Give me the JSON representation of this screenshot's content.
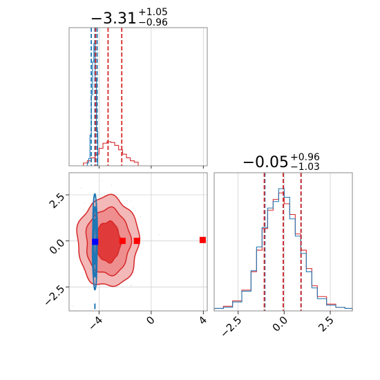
{
  "chart_data": {
    "type": "corner",
    "parameters": [
      {
        "title": {
          "main": "−3.31",
          "sup": "+1.05",
          "sub": "−0.96"
        },
        "xlim": [
          -6.3,
          4.3
        ],
        "xticks": [
          -4,
          0,
          4
        ],
        "xtick_labels": [
          "−4",
          "0",
          "4"
        ],
        "median": -3.31,
        "lower_error": 0.96,
        "upper_error": 1.05
      },
      {
        "title": {
          "main": "−0.05",
          "sup": "+0.96",
          "sub": "−1.03"
        },
        "xlim": [
          -3.8,
          3.7
        ],
        "xticks": [
          -2.5,
          0.0,
          2.5
        ],
        "xtick_labels": [
          "−2.5",
          "0.0",
          "2.5"
        ],
        "median": -0.05,
        "lower_error": 1.03,
        "upper_error": 0.96
      }
    ],
    "joint_panel": {
      "xlim": [
        -6.3,
        4.3
      ],
      "ylim": [
        -3.8,
        3.7
      ],
      "yticks": [
        2.5,
        0.0,
        -2.5
      ],
      "ytick_labels": [
        "2.5",
        "0.0",
        "−2.5"
      ]
    },
    "series": [
      {
        "color": "#d62728",
        "x_quantile_lines": [
          -4.27,
          -3.31,
          -2.26
        ],
        "y_quantile_lines": [
          -1.08,
          -0.05,
          0.91
        ],
        "x_hist_bins": [
          -5.2,
          -4.9,
          -4.6,
          -4.3,
          -4.0,
          -3.7,
          -3.4,
          -3.1,
          -2.8,
          -2.5,
          -2.2,
          -1.9,
          -1.6,
          -1.3,
          -1.0
        ],
        "x_hist_counts": [
          2,
          5,
          9,
          14,
          22,
          29,
          31,
          30,
          26,
          20,
          14,
          9,
          5,
          3
        ],
        "y_hist_bins": [
          -3.8,
          -3.3,
          -2.8,
          -2.3,
          -1.8,
          -1.5,
          -1.2,
          -0.9,
          -0.6,
          -0.3,
          0.0,
          0.3,
          0.6,
          0.9,
          1.2,
          1.5,
          1.8,
          2.3,
          2.8,
          3.3,
          3.7
        ],
        "y_hist_counts": [
          1,
          3,
          8,
          18,
          35,
          55,
          75,
          92,
          102,
          108,
          98,
          88,
          70,
          55,
          38,
          22,
          12,
          5,
          2,
          1
        ],
        "outlier_points": [
          [
            -1.1,
            0.0
          ],
          [
            -2.2,
            0.0
          ],
          [
            3.95,
            0.05
          ]
        ]
      },
      {
        "color": "#1f77b4",
        "x_quantile_lines": [
          -4.6,
          -4.32,
          -4.15
        ],
        "y_quantile_lines": [
          -1.05,
          -0.05,
          0.92
        ],
        "x_hist_bins": [
          -4.9,
          -4.8,
          -4.7,
          -4.6,
          -4.5,
          -4.4,
          -4.3,
          -4.2,
          -4.1
        ],
        "x_hist_counts": [
          2,
          8,
          40,
          95,
          140,
          165,
          118,
          45
        ],
        "y_hist_bins": [
          -3.8,
          -3.3,
          -2.8,
          -2.3,
          -1.8,
          -1.5,
          -1.2,
          -0.9,
          -0.6,
          -0.3,
          0.0,
          0.3,
          0.6,
          0.9,
          1.2,
          1.5,
          1.8,
          2.3,
          2.8,
          3.3,
          3.7
        ],
        "y_hist_counts": [
          1,
          2,
          7,
          17,
          36,
          58,
          76,
          94,
          100,
          112,
          104,
          84,
          68,
          52,
          35,
          20,
          10,
          4,
          2,
          1
        ],
        "marker": [
          -4.3,
          -0.05
        ]
      }
    ],
    "grid": true
  }
}
